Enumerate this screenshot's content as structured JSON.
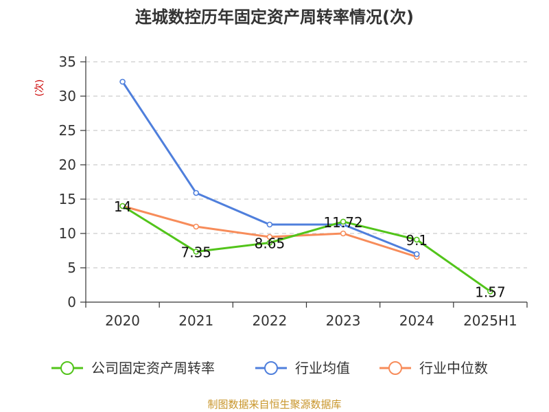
{
  "chart_data": {
    "type": "line",
    "title": "连城数控历年固定资产周转率情况(次)",
    "ylabel": "(次)",
    "categories": [
      "2020",
      "2021",
      "2022",
      "2023",
      "2024",
      "2025H1"
    ],
    "ylim": [
      0,
      35
    ],
    "yticks": [
      0,
      5,
      10,
      15,
      20,
      25,
      30,
      35
    ],
    "grid": true,
    "legend_position": "bottom",
    "series": [
      {
        "name": "公司固定资产周转率",
        "color": "#52c41a",
        "values": [
          14,
          7.35,
          8.65,
          11.72,
          9.1,
          1.57
        ],
        "labels": [
          "14",
          "7.35",
          "8.65",
          "11.72",
          "9.1",
          "1.57"
        ]
      },
      {
        "name": "行业均值",
        "color": "#4f7fdc",
        "values": [
          32.1,
          15.9,
          11.3,
          11.3,
          7.0,
          null
        ]
      },
      {
        "name": "行业中位数",
        "color": "#f78c5a",
        "values": [
          14.0,
          11.0,
          9.5,
          10.0,
          6.6,
          null
        ]
      }
    ],
    "source": "制图数据来自恒生聚源数据库"
  },
  "colors": {
    "title": "#333333",
    "unit": "#cc0000",
    "source": "#c8952a",
    "grid": "#cccccc"
  }
}
